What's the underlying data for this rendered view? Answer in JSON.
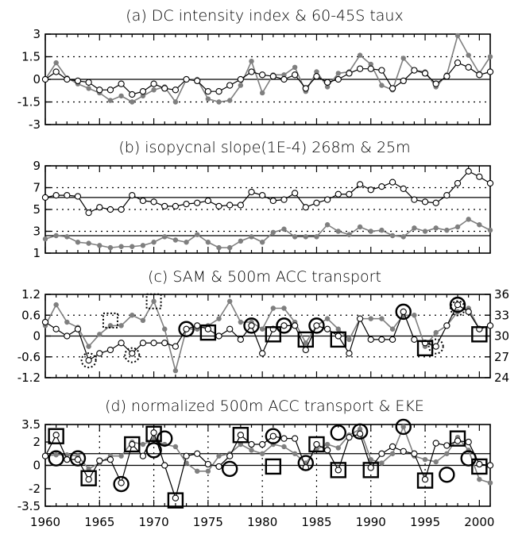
{
  "x_ticks": [
    "1960",
    "1965",
    "1970",
    "1975",
    "1980",
    "1985",
    "1990",
    "1995",
    "2000"
  ],
  "colors": {
    "filled": "#7f7f7f",
    "open": "#000000",
    "axis": "#000000"
  },
  "chart_data": [
    {
      "type": "line",
      "title": "(a) DC intensity index & 60-45S taux",
      "x_range": [
        1960,
        2001
      ],
      "ylim": [
        -3,
        3
      ],
      "y_ticks": [
        "3",
        "1.5",
        "0",
        "-1.5",
        "-3"
      ],
      "y_tick_values": [
        3,
        1.5,
        0,
        -1.5,
        -3
      ],
      "grid": "dotted at ±1.5",
      "series": [
        {
          "style": "filled-gray",
          "x_start": 1960,
          "values": [
            0,
            1.1,
            0.1,
            -0.3,
            -0.6,
            -0.9,
            -1.4,
            -1.1,
            -1.5,
            -1.1,
            -0.7,
            -0.5,
            -1.5,
            0,
            0,
            -1.3,
            -1.5,
            -1.4,
            -0.4,
            1.2,
            -0.9,
            0.3,
            0.3,
            0.8,
            -0.8,
            0.5,
            -0.5,
            0.4,
            0.5,
            1.6,
            1.0,
            -0.4,
            -0.7,
            1.4,
            0.6,
            0.5,
            -0.5,
            0.3,
            2.9,
            1.6,
            0.4,
            1.5
          ]
        },
        {
          "style": "open-circle",
          "x_start": 1960,
          "values": [
            0,
            0.5,
            0,
            -0.1,
            -0.2,
            -0.7,
            -0.7,
            -0.3,
            -1.0,
            -0.8,
            -0.3,
            -0.6,
            -0.7,
            0,
            -0.1,
            -0.8,
            -0.8,
            -0.4,
            0,
            0.5,
            0.3,
            0.2,
            0,
            0.3,
            -0.6,
            0.2,
            -0.2,
            0,
            0.4,
            0.7,
            0.7,
            0.6,
            -0.6,
            -0.1,
            0.6,
            0.4,
            -0.3,
            0.2,
            1.1,
            0.8,
            0.3,
            0.5
          ]
        }
      ]
    },
    {
      "type": "line",
      "title": "(b) isopycnal slope(1E-4) 268m & 25m",
      "x_range": [
        1960,
        2001
      ],
      "ylim": [
        1,
        9
      ],
      "y_ticks": [
        "9",
        "7",
        "5",
        "3",
        "1"
      ],
      "y_tick_values": [
        9,
        7,
        5,
        3,
        1
      ],
      "grid": "dotted at 3,5,7; solid at 2.6,6.1",
      "series": [
        {
          "style": "open-circle",
          "x_start": 1960,
          "values": [
            6.1,
            6.3,
            6.3,
            6.2,
            4.7,
            5.2,
            5.0,
            5.0,
            6.3,
            5.8,
            5.7,
            5.3,
            5.3,
            5.5,
            5.6,
            5.8,
            5.3,
            5.4,
            5.4,
            6.6,
            6.3,
            5.8,
            5.9,
            6.5,
            5.2,
            5.6,
            5.9,
            6.4,
            6.4,
            7.3,
            6.8,
            7.1,
            7.5,
            6.9,
            5.9,
            5.7,
            5.6,
            6.3,
            7.4,
            8.5,
            8.0,
            7.4
          ]
        },
        {
          "style": "filled-gray",
          "x_start": 1960,
          "values": [
            2.3,
            2.6,
            2.5,
            2.0,
            1.9,
            1.7,
            1.5,
            1.6,
            1.6,
            1.7,
            2.0,
            2.5,
            2.2,
            2.0,
            2.7,
            2.0,
            1.5,
            1.5,
            2.1,
            2.5,
            2.0,
            2.9,
            3.2,
            2.5,
            2.5,
            2.5,
            3.6,
            3.0,
            2.7,
            3.4,
            3.0,
            3.1,
            2.6,
            2.5,
            3.3,
            3.0,
            3.3,
            3.1,
            3.4,
            4.1,
            3.6,
            3.1
          ]
        }
      ]
    },
    {
      "type": "line",
      "title": "(c) SAM & 500m ACC transport",
      "x_range": [
        1960,
        2001
      ],
      "ylim": [
        -1.2,
        1.2
      ],
      "y_ticks": [
        "1.2",
        "0.6",
        "0",
        "-0.6",
        "-1.2"
      ],
      "y_tick_values": [
        1.2,
        0.6,
        0,
        -0.6,
        -1.2
      ],
      "y2lim": [
        24,
        36
      ],
      "y2_ticks": [
        "36",
        "33",
        "30",
        "27",
        "24"
      ],
      "y2_tick_values": [
        36,
        33,
        30,
        27,
        24
      ],
      "grid": "dotted at ±0.6",
      "series": [
        {
          "style": "filled-gray",
          "x_start": 1960,
          "values": [
            0.3,
            0.9,
            0.4,
            0.25,
            -0.3,
            0.05,
            0.3,
            0.3,
            0.6,
            0.45,
            1.0,
            0.2,
            -1.0,
            0.2,
            0.2,
            0.3,
            0.5,
            1.0,
            0.4,
            0.4,
            0.2,
            0.8,
            0.8,
            0.4,
            -0.2,
            0.3,
            0.5,
            0.2,
            -0.1,
            0.5,
            0.5,
            0.5,
            0.2,
            0.6,
            0.6,
            -0.3,
            0.1,
            0.3,
            0.7,
            0.8,
            0.2,
            0.3
          ]
        },
        {
          "style": "open-circle",
          "x_start": 1960,
          "values": [
            0.4,
            0.2,
            0,
            0.2,
            -0.7,
            -0.5,
            -0.4,
            -0.2,
            -0.5,
            -0.2,
            -0.2,
            -0.2,
            -0.3,
            0.2,
            0.3,
            0.2,
            0,
            0.2,
            -0.1,
            0.3,
            -0.5,
            0.2,
            0.3,
            0.3,
            -0.4,
            0.3,
            0.2,
            0,
            -0.5,
            0.5,
            -0.1,
            -0.1,
            -0.1,
            0.7,
            -0.1,
            -0.2,
            -0.3,
            0.3,
            0.9,
            0.7,
            0.2,
            0.3
          ]
        }
      ],
      "markers": [
        {
          "shape": "square-dotted",
          "x": 1966,
          "y": 0.45
        },
        {
          "shape": "square-dotted",
          "x": 1970,
          "y": 1.0
        },
        {
          "shape": "circle-dotted",
          "x": 1964,
          "y": -0.7
        },
        {
          "shape": "circle-dotted",
          "x": 1968,
          "y": -0.55
        },
        {
          "shape": "circle-dotted",
          "x": 1996,
          "y": -0.3
        },
        {
          "shape": "circle-dotted",
          "x": 1998,
          "y": 0.8
        },
        {
          "shape": "circle",
          "x": 1973,
          "y": 0.2
        },
        {
          "shape": "circle",
          "x": 1979,
          "y": 0.3
        },
        {
          "shape": "circle",
          "x": 1982,
          "y": 0.3
        },
        {
          "shape": "circle",
          "x": 1985,
          "y": 0.3
        },
        {
          "shape": "circle",
          "x": 1993,
          "y": 0.7
        },
        {
          "shape": "circle",
          "x": 1998,
          "y": 0.9
        },
        {
          "shape": "square",
          "x": 1975,
          "y": 0.1
        },
        {
          "shape": "square",
          "x": 1981,
          "y": 0.05
        },
        {
          "shape": "square",
          "x": 1984,
          "y": -0.1
        },
        {
          "shape": "square",
          "x": 1987,
          "y": -0.1
        },
        {
          "shape": "square",
          "x": 1995,
          "y": -0.35
        },
        {
          "shape": "square",
          "x": 2000,
          "y": 0.05
        }
      ]
    },
    {
      "type": "line",
      "title": "(d) normalized 500m ACC transport & EKE",
      "x_range": [
        1960,
        2001
      ],
      "ylim": [
        -3.5,
        3.5
      ],
      "y_ticks": [
        "3.5",
        "2",
        "0",
        "-2",
        "-3.5"
      ],
      "y_tick_values": [
        3.5,
        2,
        0,
        -2,
        -3.5
      ],
      "grid": "dotted vertical at 5-year ticks",
      "series": [
        {
          "style": "filled-gray",
          "x_start": 1960,
          "values": [
            0.8,
            0.9,
            0.9,
            0.8,
            -0.3,
            0.2,
            0.8,
            0.8,
            2.0,
            1.8,
            2.2,
            1.8,
            1.6,
            0.2,
            -0.5,
            -0.5,
            0.8,
            1.0,
            1.8,
            1.3,
            1.0,
            1.8,
            1.6,
            1.0,
            0.2,
            1.4,
            1.8,
            1.5,
            2.6,
            3.1,
            0.5,
            0.2,
            1.0,
            3.3,
            0.8,
            0.5,
            0.3,
            1.0,
            2.4,
            1.3,
            -1.2,
            -1.5
          ]
        },
        {
          "style": "open-circle",
          "x_start": 1960,
          "values": [
            0.8,
            2.6,
            0.5,
            0.5,
            -1.2,
            0.4,
            0.5,
            -1.5,
            1.8,
            0.8,
            2.8,
            0,
            -2.8,
            0.8,
            1.0,
            0.1,
            -0.1,
            0.8,
            2.6,
            1.8,
            1.8,
            2.5,
            2.3,
            2.3,
            -0.2,
            1.8,
            1.3,
            -0.4,
            2.4,
            2.7,
            -0.2,
            1.0,
            1.6,
            1.2,
            1.0,
            -1.2,
            1.9,
            1.7,
            2.1,
            2.0,
            0.1,
            0
          ]
        }
      ],
      "markers": [
        {
          "shape": "circle",
          "x": 1961,
          "y": 0.6
        },
        {
          "shape": "circle",
          "x": 1963,
          "y": 0.6
        },
        {
          "shape": "circle",
          "x": 1967,
          "y": -1.6
        },
        {
          "shape": "circle",
          "x": 1970,
          "y": 1.3
        },
        {
          "shape": "circle",
          "x": 1971,
          "y": 2.3
        },
        {
          "shape": "circle",
          "x": 1977,
          "y": -0.3
        },
        {
          "shape": "circle",
          "x": 1981,
          "y": 2.5
        },
        {
          "shape": "circle",
          "x": 1984,
          "y": 0.2
        },
        {
          "shape": "circle",
          "x": 1987,
          "y": 2.8
        },
        {
          "shape": "circle",
          "x": 1989,
          "y": 2.9
        },
        {
          "shape": "circle",
          "x": 1993,
          "y": 3.3
        },
        {
          "shape": "circle",
          "x": 1997,
          "y": -0.8
        },
        {
          "shape": "circle",
          "x": 1999,
          "y": 0.6
        },
        {
          "shape": "square",
          "x": 1961,
          "y": 2.5
        },
        {
          "shape": "square",
          "x": 1964,
          "y": -1.1
        },
        {
          "shape": "square",
          "x": 1968,
          "y": 1.8
        },
        {
          "shape": "square",
          "x": 1970,
          "y": 2.7
        },
        {
          "shape": "square",
          "x": 1972,
          "y": -3.0
        },
        {
          "shape": "square",
          "x": 1978,
          "y": 2.6
        },
        {
          "shape": "square",
          "x": 1981,
          "y": -0.1
        },
        {
          "shape": "square",
          "x": 1985,
          "y": 1.8
        },
        {
          "shape": "square",
          "x": 1987,
          "y": -0.4
        },
        {
          "shape": "square",
          "x": 1990,
          "y": -0.4
        },
        {
          "shape": "square",
          "x": 1995,
          "y": -1.3
        },
        {
          "shape": "square",
          "x": 1998,
          "y": 2.3
        },
        {
          "shape": "square",
          "x": 2000,
          "y": -0.1
        }
      ]
    }
  ]
}
